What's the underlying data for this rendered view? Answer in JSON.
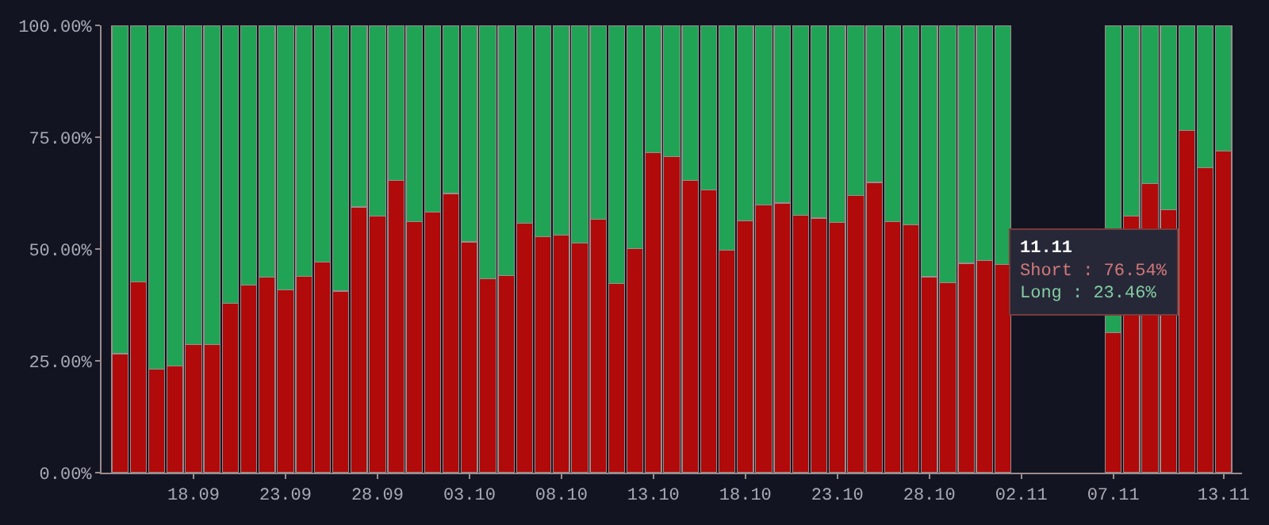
{
  "chart_data": {
    "type": "bar",
    "stacked": true,
    "x": [
      "--09-14",
      "--09-15",
      "--09-16",
      "--09-17",
      "--09-18",
      "--09-19",
      "--09-20",
      "--09-21",
      "--09-22",
      "--09-23",
      "--09-24",
      "--09-25",
      "--09-26",
      "--09-27",
      "--09-28",
      "--09-29",
      "--09-30",
      "--10-01",
      "--10-02",
      "--10-03",
      "--10-04",
      "--10-05",
      "--10-06",
      "--10-07",
      "--10-08",
      "--10-09",
      "--10-10",
      "--10-11",
      "--10-12",
      "--10-13",
      "--10-14",
      "--10-15",
      "--10-16",
      "--10-17",
      "--10-18",
      "--10-19",
      "--10-20",
      "--10-21",
      "--10-22",
      "--10-23",
      "--10-24",
      "--10-25",
      "--10-26",
      "--10-27",
      "--10-28",
      "--10-29",
      "--10-30",
      "--10-31",
      "--11-01",
      "--11-02",
      "--11-03",
      "--11-04",
      "--11-05",
      "--11-06",
      "--11-07",
      "--11-08",
      "--11-09",
      "--11-10",
      "--11-11",
      "--11-12",
      "--11-13"
    ],
    "series": [
      {
        "color": "#b00a0a",
        "values": [
          26.6,
          42.7,
          23.2,
          23.9,
          28.7,
          28.7,
          37.9,
          41.9,
          43.7,
          40.9,
          43.9,
          47.1,
          40.6,
          59.4,
          57.4,
          65.4,
          56.1,
          58.2,
          62.4,
          51.6,
          43.4,
          44.0,
          55.7,
          52.8,
          53.1,
          51.3,
          56.7,
          42.3,
          50.1,
          71.6,
          70.6,
          65.4,
          63.2,
          49.7,
          56.3,
          59.9,
          60.3,
          57.6,
          56.9,
          55.9,
          61.9,
          64.9,
          56.1,
          55.4,
          43.8,
          42.4,
          46.8,
          47.4,
          46.6,
          null,
          null,
          null,
          null,
          null,
          31.3,
          57.4,
          64.7,
          58.8,
          76.54,
          68.2,
          71.9
        ]
      },
      {
        "color": "#21a356",
        "values": [
          73.4,
          57.3,
          76.8,
          76.1,
          71.3,
          71.3,
          62.1,
          58.1,
          56.3,
          59.1,
          56.1,
          52.9,
          59.4,
          40.6,
          42.6,
          34.6,
          43.9,
          41.8,
          37.6,
          48.4,
          56.6,
          56.0,
          44.3,
          47.2,
          46.9,
          48.7,
          43.3,
          57.7,
          49.9,
          28.4,
          29.4,
          34.6,
          36.8,
          50.3,
          43.7,
          40.1,
          39.7,
          42.4,
          43.1,
          44.1,
          38.1,
          35.1,
          43.9,
          44.6,
          56.2,
          57.6,
          53.2,
          52.6,
          53.4,
          null,
          null,
          null,
          null,
          null,
          68.7,
          42.6,
          35.3,
          41.2,
          23.46,
          31.8,
          28.1
        ]
      }
    ],
    "ylim": [
      0,
      100
    ],
    "yticks": [
      {
        "value": 0,
        "label": "0.00%"
      },
      {
        "value": 25,
        "label": "25.00%"
      },
      {
        "value": 50,
        "label": "50.00%"
      },
      {
        "value": 75,
        "label": "75.00%"
      },
      {
        "value": 100,
        "label": "100.00%"
      }
    ],
    "xlim": [
      "--09-13",
      "--11-14"
    ],
    "xticks": [
      {
        "value": "--09-18",
        "label": "18.09"
      },
      {
        "value": "--09-23",
        "label": "23.09"
      },
      {
        "value": "--09-28",
        "label": "28.09"
      },
      {
        "value": "--10-03",
        "label": "03.10"
      },
      {
        "value": "--10-08",
        "label": "08.10"
      },
      {
        "value": "--10-13",
        "label": "13.10"
      },
      {
        "value": "--10-18",
        "label": "18.10"
      },
      {
        "value": "--10-23",
        "label": "23.10"
      },
      {
        "value": "--10-28",
        "label": "28.10"
      },
      {
        "value": "--11-02",
        "label": "02.11"
      },
      {
        "value": "--11-07",
        "label": "07.11"
      },
      {
        "value": "--11-13",
        "label": "13.11"
      }
    ],
    "annotations": [
      "11.11\nShort : 76.54%\nLong : 23.46%"
    ]
  }
}
